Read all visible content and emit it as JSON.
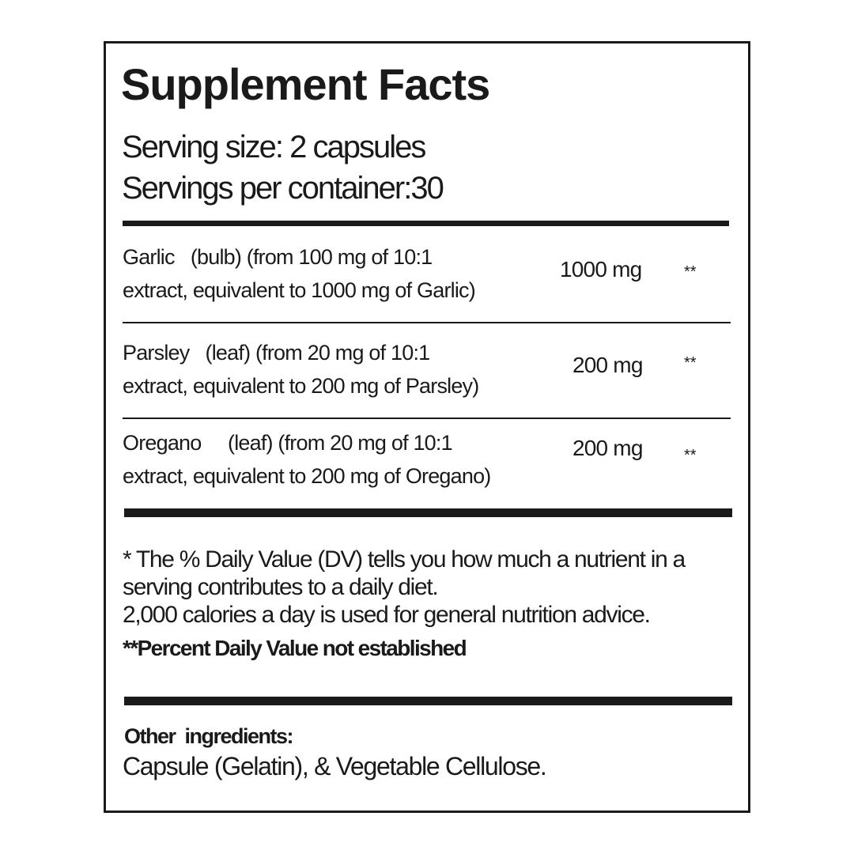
{
  "title": "Supplement Facts",
  "serving_size": "Serving size: 2 capsules",
  "servings_per_container": "Servings per container:30",
  "ingredients": [
    {
      "name": "Garlic",
      "line1": "(bulb) (from 100 mg of 10:1",
      "line2": "extract, equivalent to 1000 mg of Garlic)",
      "amount": "1000 mg",
      "dv": "**"
    },
    {
      "name": "Parsley",
      "line1": "(leaf) (from 20 mg of 10:1",
      "line2": "extract, equivalent to 200 mg of Parsley)",
      "amount": "200 mg",
      "dv": "**"
    },
    {
      "name": "Oregano",
      "line1": "(leaf) (from 20 mg of 10:1",
      "line2": "extract, equivalent to 200 mg of Oregano)",
      "amount": "200 mg",
      "dv": "**"
    }
  ],
  "footnote": {
    "line1": "* The % Daily Value (DV) tells you how much a nutrient in a",
    "line2": "serving contributes to a daily diet.",
    "line3": "2,000 calories a day is used for general nutrition advice.",
    "line4": "**Percent Daily Value not established"
  },
  "other_ingredients": {
    "label": "Other  ingredients:",
    "value": "Capsule (Gelatin), & Vegetable Cellulose."
  }
}
